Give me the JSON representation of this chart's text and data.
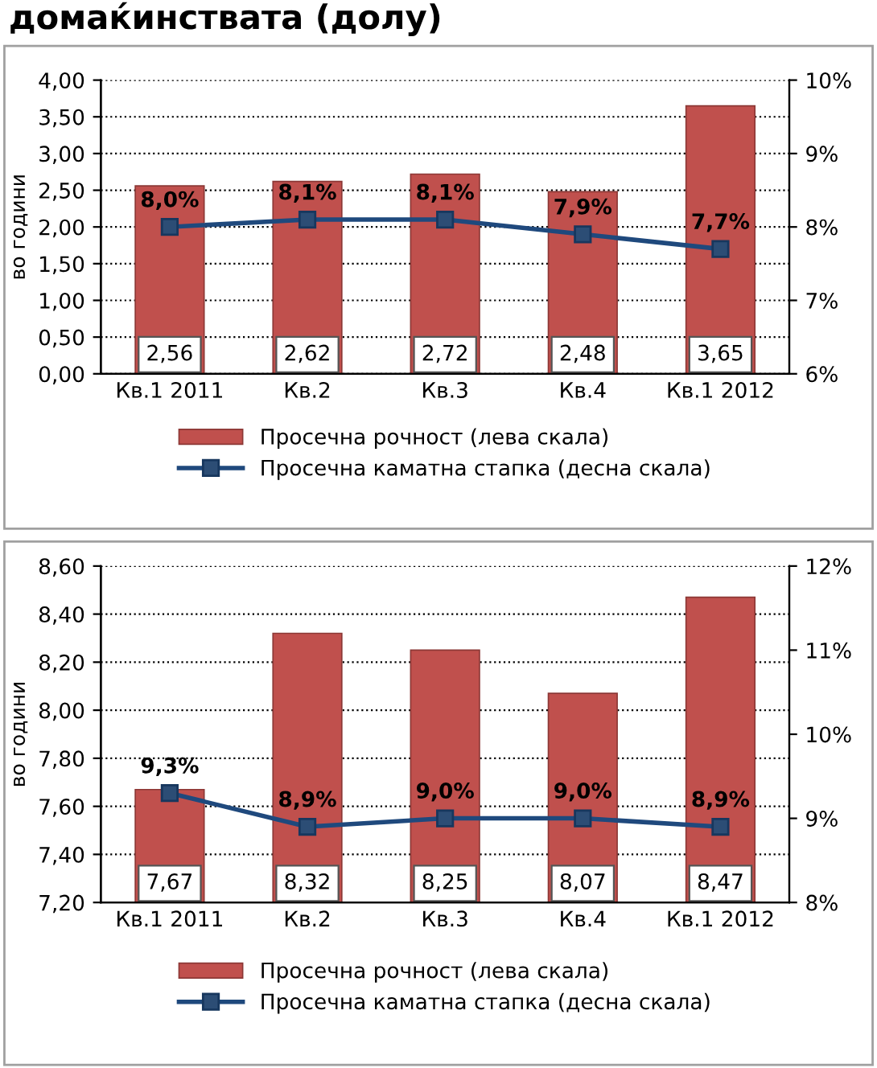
{
  "chart_data": [
    {
      "type": "bar",
      "title": "домаќинствата (долу)",
      "ylabel": "во години",
      "categories": [
        "Кв.1 2011",
        "Кв.2",
        "Кв.3",
        "Кв.4",
        "Кв.1 2012"
      ],
      "series": [
        {
          "name": "Просечна рочност (лева скала)",
          "color": "#c0504d",
          "values": [
            2.56,
            2.62,
            2.72,
            2.48,
            3.65
          ],
          "value_labels": [
            "2,56",
            "2,62",
            "2,72",
            "2,48",
            "3,65"
          ]
        },
        {
          "name": "Просечна каматна стапка (десна скала)",
          "type": "line",
          "axis": "y2",
          "color": "#1f497d",
          "values": [
            8.0,
            8.1,
            8.1,
            7.9,
            7.7
          ],
          "value_labels": [
            "8,0%",
            "8,1%",
            "8,1%",
            "7,9%",
            "7,7%"
          ]
        }
      ],
      "ylim": [
        0,
        4
      ],
      "yticks": [
        {
          "value": 0,
          "label": "0,00"
        },
        {
          "value": 0.5,
          "label": "0,50"
        },
        {
          "value": 1,
          "label": "1,00"
        },
        {
          "value": 1.5,
          "label": "1,50"
        },
        {
          "value": 2,
          "label": "2,00"
        },
        {
          "value": 2.5,
          "label": "2,50"
        },
        {
          "value": 3,
          "label": "3,00"
        },
        {
          "value": 3.5,
          "label": "3,50"
        },
        {
          "value": 4,
          "label": "4,00"
        }
      ],
      "y2lim": [
        6,
        10
      ],
      "y2ticks": [
        {
          "value": 6,
          "label": "6%"
        },
        {
          "value": 7,
          "label": "7%"
        },
        {
          "value": 8,
          "label": "8%"
        },
        {
          "value": 9,
          "label": "9%"
        },
        {
          "value": 10,
          "label": "10%"
        }
      ],
      "grid": "y",
      "legend": "bottom",
      "marker": "square",
      "line_style": "solid"
    },
    {
      "type": "bar",
      "ylabel": "во години",
      "categories": [
        "Кв.1 2011",
        "Кв.2",
        "Кв.3",
        "Кв.4",
        "Кв.1 2012"
      ],
      "series": [
        {
          "name": "Просечна рочност (лева скала)",
          "color": "#c0504d",
          "values": [
            7.67,
            8.32,
            8.25,
            8.07,
            8.47
          ],
          "value_labels": [
            "7,67",
            "8,32",
            "8,25",
            "8,07",
            "8,47"
          ]
        },
        {
          "name": "Просечна каматна стапка (десна скала)",
          "type": "line",
          "axis": "y2",
          "color": "#1f497d",
          "values": [
            9.3,
            8.9,
            9.0,
            9.0,
            8.9
          ],
          "value_labels": [
            "9,3%",
            "8,9%",
            "9,0%",
            "9,0%",
            "8,9%"
          ]
        }
      ],
      "ylim": [
        7.2,
        8.6
      ],
      "yticks": [
        {
          "value": 7.2,
          "label": "7,20"
        },
        {
          "value": 7.4,
          "label": "7,40"
        },
        {
          "value": 7.6,
          "label": "7,60"
        },
        {
          "value": 7.8,
          "label": "7,80"
        },
        {
          "value": 8.0,
          "label": "8,00"
        },
        {
          "value": 8.2,
          "label": "8,20"
        },
        {
          "value": 8.4,
          "label": "8,40"
        },
        {
          "value": 8.6,
          "label": "8,60"
        }
      ],
      "y2lim": [
        8,
        12
      ],
      "y2ticks": [
        {
          "value": 8,
          "label": "8%"
        },
        {
          "value": 9,
          "label": "9%"
        },
        {
          "value": 10,
          "label": "10%"
        },
        {
          "value": 11,
          "label": "11%"
        },
        {
          "value": 12,
          "label": "12%"
        }
      ],
      "grid": "y",
      "legend": "bottom",
      "marker": "square",
      "line_style": "solid"
    }
  ]
}
